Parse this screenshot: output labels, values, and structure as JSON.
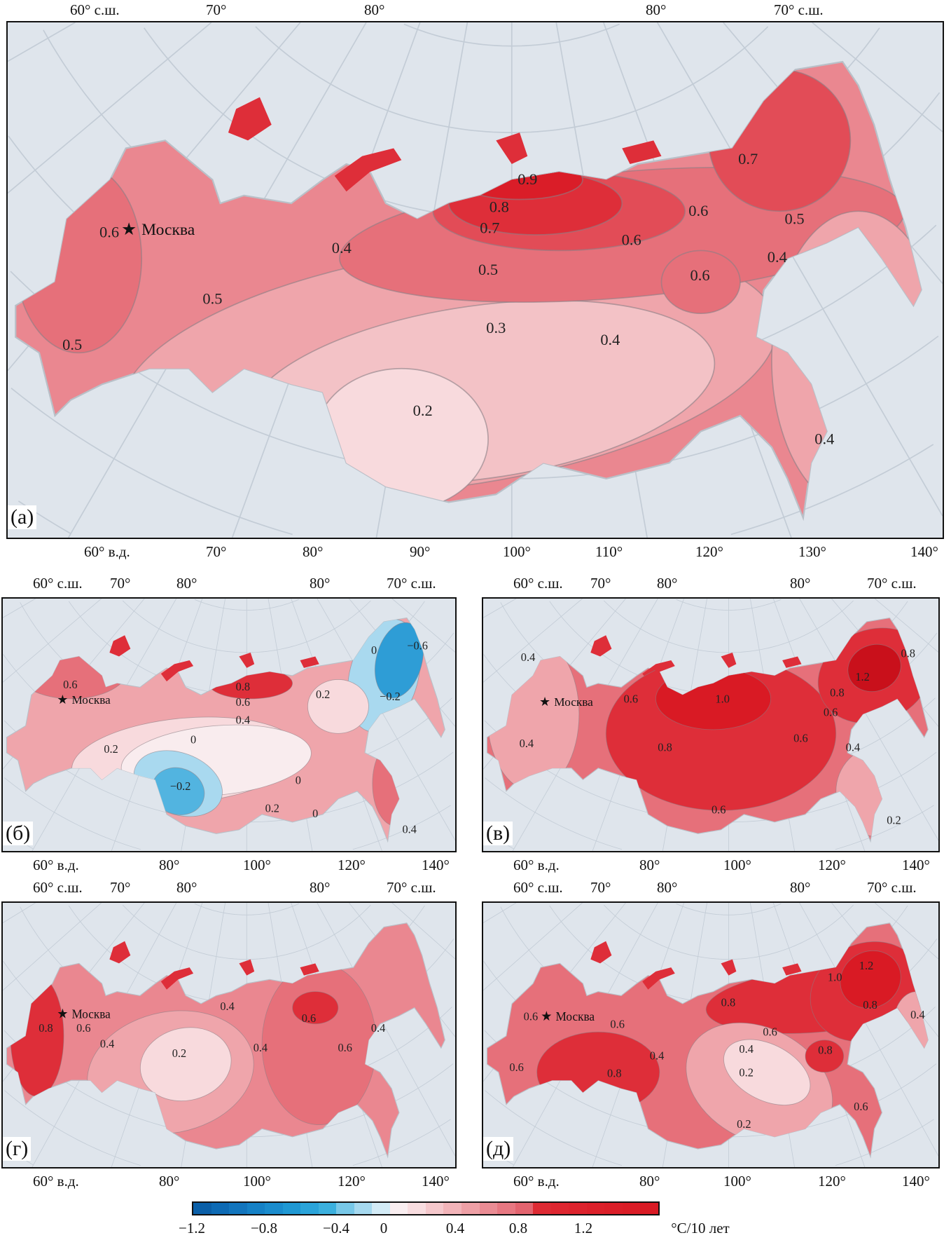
{
  "colorbar": {
    "ticks": [
      "−1.2",
      "−0.8",
      "−0.4",
      "0",
      "0.4",
      "0.8",
      "1.2"
    ],
    "unit": "°C/10 лет",
    "min": -1.2,
    "max": 1.4,
    "stops": [
      "#0a5fa8",
      "#0d6ab4",
      "#1275bd",
      "#1581c6",
      "#1a8ccd",
      "#1f98d3",
      "#2aa4da",
      "#3bb0de",
      "#78c8e8",
      "#a6d9ef",
      "#d3ebf6",
      "#f9eef0",
      "#f8dde0",
      "#f5c8cc",
      "#f2b4b9",
      "#eea0a6",
      "#ea8c94",
      "#e77882",
      "#e3646f",
      "#de2a33",
      "#de2630",
      "#dd232d",
      "#dc202a",
      "#db1e28",
      "#da1c26",
      "#d91a24"
    ]
  },
  "palette": {
    "-0.6": "#1e7fc2",
    "-0.4": "#2e9dd6",
    "-0.2": "#52b4e0",
    "-0.1": "#a9d9ef",
    "0": "#f9ecee",
    "0.2": "#f8dadd",
    "0.3": "#f3c2c6",
    "0.4": "#efa5ab",
    "0.5": "#ea8790",
    "0.6": "#e6707a",
    "0.7": "#e24c57",
    "0.8": "#de2e39",
    "0.9": "#da1d28",
    "1.0": "#d91a24",
    "1.2": "#c9101b"
  },
  "moscow": "Москва",
  "panels": {
    "a": {
      "label": "(а)",
      "top": [
        "60° с.ш.",
        "70°",
        "80°",
        "80°",
        "70° с.ш."
      ],
      "bottom": [
        "60° в.д.",
        "70°",
        "80°",
        "90°",
        "100°",
        "110°",
        "120°",
        "130°",
        "140°"
      ],
      "contours": [
        "0.6",
        "0.5",
        "0.5",
        "0.4",
        "0.9",
        "0.8",
        "0.7",
        "0.5",
        "0.3",
        "0.2",
        "0.4",
        "0.6",
        "0.6",
        "0.7",
        "0.5",
        "0.4",
        "0.6",
        "0.4"
      ]
    },
    "b": {
      "label": "(б)",
      "top": [
        "60° с.ш.",
        "70°",
        "80°",
        "80°",
        "70° с.ш."
      ],
      "bottom": [
        "60° в.д.",
        "80°",
        "100°",
        "120°",
        "140°"
      ],
      "contours": [
        "0.6",
        "0.2",
        "0",
        "0.8",
        "0.6",
        "0.4",
        "−0.2",
        "0",
        "0.2",
        "0",
        "0.2",
        "0",
        "−0.2",
        "−0.6",
        "0.4"
      ]
    },
    "c": {
      "label": "(в)",
      "top": [
        "60° с.ш.",
        "70°",
        "80°",
        "80°",
        "70° с.ш."
      ],
      "bottom": [
        "60° в.д.",
        "80°",
        "100°",
        "120°",
        "140°"
      ],
      "contours": [
        "0.4",
        "0.4",
        "0.6",
        "1.0",
        "0.8",
        "0.6",
        "0.8",
        "1.2",
        "0.8",
        "0.6",
        "0.6",
        "0.4",
        "0.2"
      ]
    },
    "d": {
      "label": "(г)",
      "top": [
        "60° с.ш.",
        "70°",
        "80°",
        "80°",
        "70° с.ш."
      ],
      "bottom": [
        "60° в.д.",
        "80°",
        "100°",
        "120°",
        "140°"
      ],
      "contours": [
        "0.8",
        "0.6",
        "0.4",
        "0.4",
        "0.2",
        "0.4",
        "0.6",
        "0.6",
        "0.4"
      ]
    },
    "e": {
      "label": "(д)",
      "top": [
        "60° с.ш.",
        "70°",
        "80°",
        "80°",
        "70° с.ш."
      ],
      "bottom": [
        "60° в.д.",
        "80°",
        "100°",
        "120°",
        "140°"
      ],
      "contours": [
        "0.6",
        "0.6",
        "0.6",
        "0.8",
        "0.4",
        "0.8",
        "0.6",
        "0.4",
        "0.2",
        "0.2",
        "1.0",
        "1.2",
        "0.8",
        "0.8",
        "0.6",
        "0.4"
      ]
    }
  }
}
